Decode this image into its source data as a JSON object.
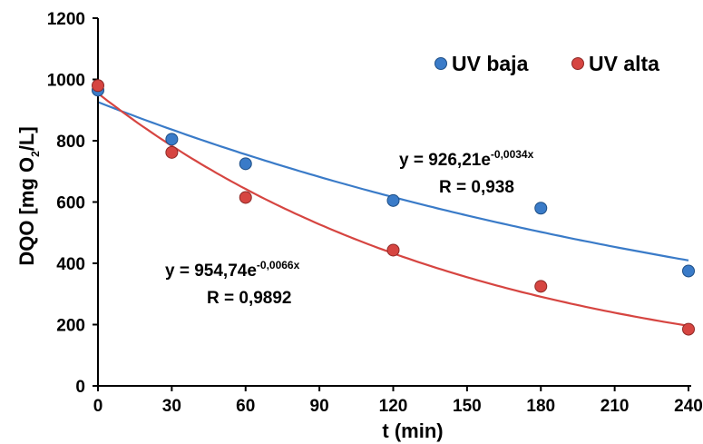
{
  "chart_data": {
    "type": "scatter",
    "xlabel": "t (min)",
    "ylabel": {
      "main": "DQO [mg O",
      "sub": "2",
      "tail": "/L]"
    },
    "xlim": [
      0,
      240
    ],
    "ylim": [
      0,
      1200
    ],
    "x_ticks": [
      "0",
      "30",
      "60",
      "90",
      "120",
      "150",
      "180",
      "210",
      "240"
    ],
    "y_ticks": [
      "0",
      "200",
      "400",
      "600",
      "800",
      "1000",
      "1200"
    ],
    "grid": false,
    "legend_position": "top-right",
    "series": [
      {
        "name": "UV baja",
        "color": "#3a7bc8",
        "x": [
          0,
          30,
          60,
          120,
          180,
          240
        ],
        "y": [
          965,
          805,
          725,
          605,
          580,
          375
        ],
        "fit": {
          "model": "exponential",
          "a": 926.21,
          "b": -0.0034,
          "equation_prefix": "y = 926,21e",
          "equation_exponent": "-0,0034x",
          "r_label": "R = 0,938"
        }
      },
      {
        "name": "UV alta",
        "color": "#d64541",
        "x": [
          0,
          30,
          60,
          120,
          180,
          240
        ],
        "y": [
          980,
          762,
          615,
          443,
          325,
          185
        ],
        "fit": {
          "model": "exponential",
          "a": 954.74,
          "b": -0.0066,
          "equation_prefix": "y = 954,74e",
          "equation_exponent": "-0,0066x",
          "r_label": "R = 0,9892"
        }
      }
    ]
  }
}
